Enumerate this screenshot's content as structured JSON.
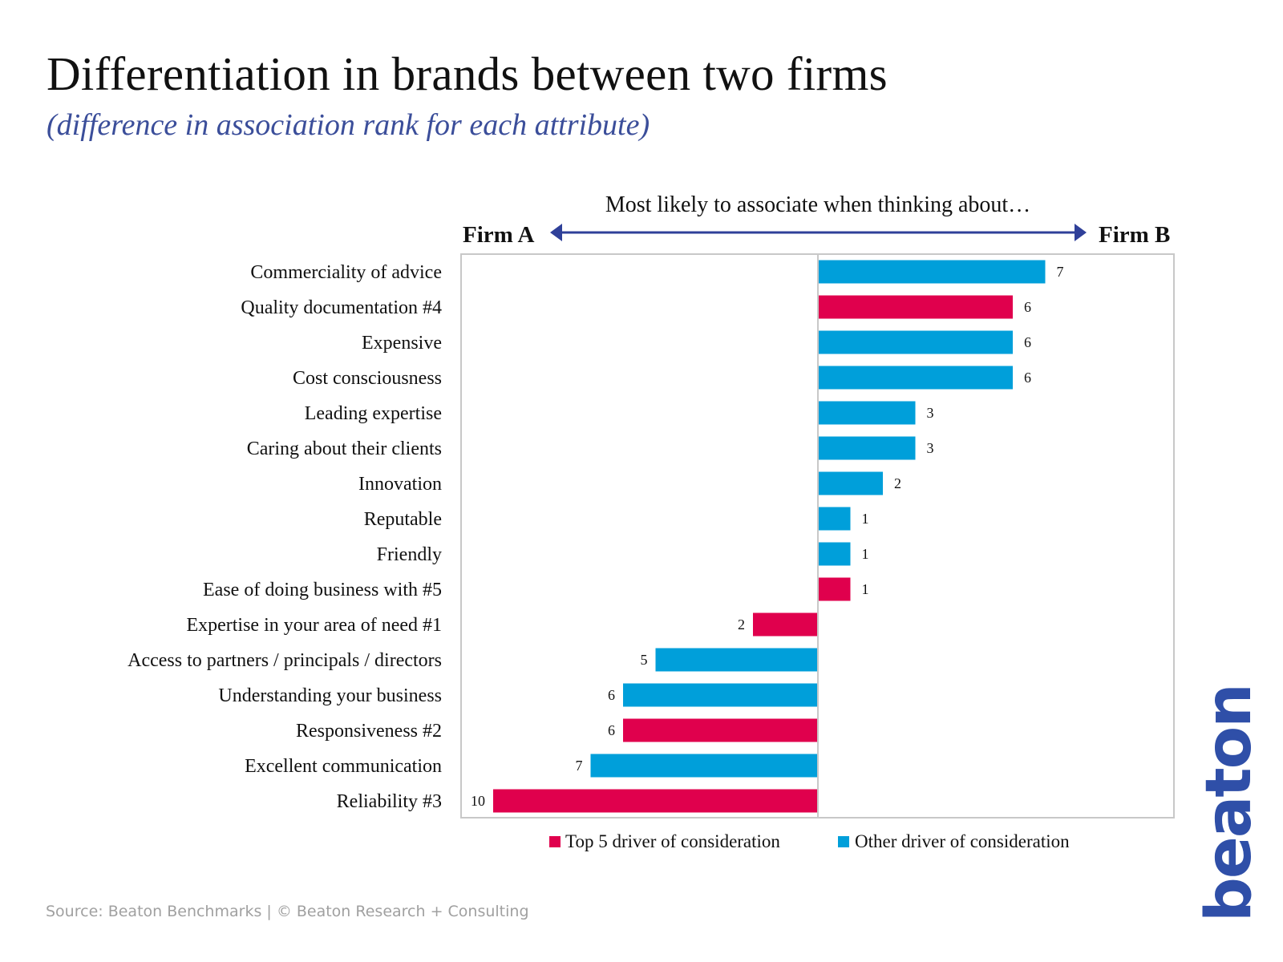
{
  "header": {
    "title": "Differentiation in brands between two firms",
    "subtitle": "(difference in association rank for each attribute)"
  },
  "footer": {
    "source": "Source: Beaton Benchmarks | © Beaton Research + Consulting",
    "logo": "beaton"
  },
  "colors": {
    "top5": "#e0004d",
    "other": "#009fda",
    "arrow": "#2f4099",
    "subtitle": "#3b4e9a",
    "logo": "#2f4fa8",
    "frame": "#c8c8c8"
  },
  "chart_data": {
    "type": "bar",
    "orientation": "horizontal-diverging",
    "title": "Differentiation in brands between two firms",
    "subtitle": "(difference in association rank for each attribute)",
    "direction_label": "Most likely to associate when thinking about…",
    "left_label": "Firm A",
    "right_label": "Firm B",
    "xlim": [
      -11,
      11
    ],
    "grid": false,
    "legend_position": "bottom",
    "legend": [
      {
        "key": "top5",
        "label": "Top 5 driver of consideration"
      },
      {
        "key": "other",
        "label": "Other driver of consideration"
      }
    ],
    "categories": [
      "Commerciality of advice",
      "Quality documentation #4",
      "Expensive",
      "Cost consciousness",
      "Leading expertise",
      "Caring about their clients",
      "Innovation",
      "Reputable",
      "Friendly",
      "Ease of doing business with #5",
      "Expertise in your area of need #1",
      "Access to partners / principals / directors",
      "Understanding your business",
      "Responsiveness #2",
      "Excellent communication",
      "Reliability #3"
    ],
    "values": [
      7,
      6,
      6,
      6,
      3,
      3,
      2,
      1,
      1,
      1,
      -2,
      -5,
      -6,
      -6,
      -7,
      -10
    ],
    "labels": [
      "7",
      "6",
      "6",
      "6",
      "3",
      "3",
      "2",
      "1",
      "1",
      "1",
      "2",
      "5",
      "6",
      "6",
      "7",
      "10"
    ],
    "groups": [
      "other",
      "top5",
      "other",
      "other",
      "other",
      "other",
      "other",
      "other",
      "other",
      "top5",
      "top5",
      "other",
      "other",
      "top5",
      "other",
      "top5"
    ]
  }
}
